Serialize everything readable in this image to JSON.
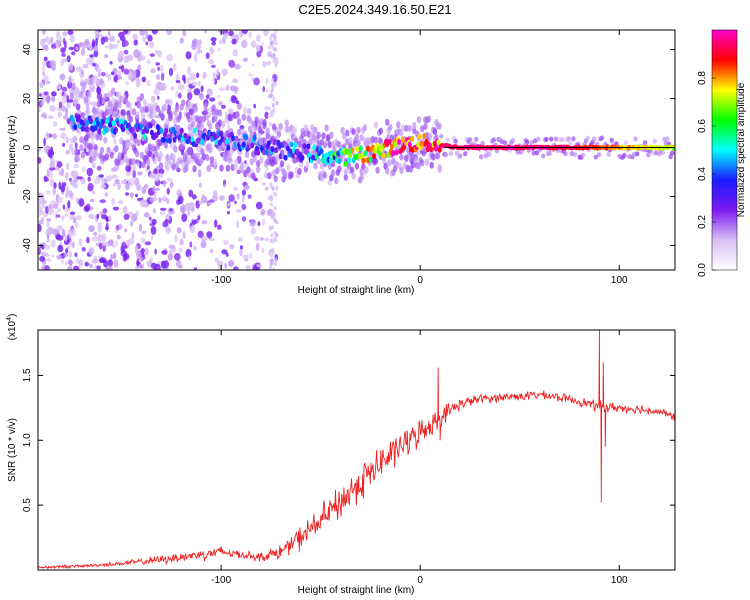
{
  "title": "C2E5.2024.349.16.50.E21",
  "chart_data": [
    {
      "type": "heatmap",
      "name": "spectrogram",
      "xlabel": "Height of straight line (km)",
      "ylabel": "Frequency (Hz)",
      "xlim": [
        -192,
        128
      ],
      "ylim": [
        -50,
        48
      ],
      "xticks": [
        -100,
        0,
        100
      ],
      "yticks": [
        -40,
        -20,
        0,
        20,
        40
      ],
      "colorbar": {
        "label": "Normalized spectral amplitude",
        "range": [
          0,
          1
        ],
        "ticks": [
          0.0,
          0.2,
          0.4,
          0.6,
          0.8
        ],
        "colors": [
          "#ffffff",
          "#d9bff5",
          "#7d1bf0",
          "#1a1aff",
          "#00ffff",
          "#00ff00",
          "#ffff00",
          "#ff0000",
          "#ff00cc"
        ]
      },
      "ridge": [
        {
          "x": -168,
          "y": 10,
          "amp": 0.35
        },
        {
          "x": -150,
          "y": 8,
          "amp": 0.4
        },
        {
          "x": -130,
          "y": 6,
          "amp": 0.35
        },
        {
          "x": -110,
          "y": 4,
          "amp": 0.35
        },
        {
          "x": -90,
          "y": 2,
          "amp": 0.3
        },
        {
          "x": -70,
          "y": -1,
          "amp": 0.3
        },
        {
          "x": -50,
          "y": -3,
          "amp": 0.4
        },
        {
          "x": -40,
          "y": -4,
          "amp": 0.55
        },
        {
          "x": -30,
          "y": -3,
          "amp": 0.7
        },
        {
          "x": -20,
          "y": -1,
          "amp": 0.8
        },
        {
          "x": -10,
          "y": 1,
          "amp": 0.85
        },
        {
          "x": 0,
          "y": 2,
          "amp": 0.85
        },
        {
          "x": 10,
          "y": 1,
          "amp": 0.9
        },
        {
          "x": 20,
          "y": 0,
          "amp": 0.95
        },
        {
          "x": 60,
          "y": 0,
          "amp": 0.95
        },
        {
          "x": 85,
          "y": 0,
          "amp": 0.9
        },
        {
          "x": 100,
          "y": 0,
          "amp": 0.8
        },
        {
          "x": 128,
          "y": 0,
          "amp": 0.7
        }
      ]
    },
    {
      "type": "line",
      "name": "snr",
      "xlabel": "Height of straight line (km)",
      "ylabel": "SNR (10 * v/v)",
      "yscale_label": "(x10",
      "yscale_exp": "4",
      "xlim": [
        -192,
        128
      ],
      "ylim": [
        0.0,
        1.85
      ],
      "xticks": [
        -100,
        0,
        100
      ],
      "yticks": [
        0.5,
        1.0,
        1.5
      ],
      "ytick_labels": [
        "0.5",
        "1.0",
        "1.5"
      ],
      "color": "#ee2222",
      "x": [
        -192,
        -170,
        -150,
        -130,
        -110,
        -100,
        -90,
        -80,
        -70,
        -60,
        -50,
        -40,
        -30,
        -20,
        -10,
        0,
        10,
        20,
        30,
        40,
        50,
        60,
        70,
        80,
        90,
        100,
        110,
        120,
        128
      ],
      "y": [
        0.02,
        0.03,
        0.05,
        0.08,
        0.12,
        0.14,
        0.12,
        0.1,
        0.14,
        0.25,
        0.38,
        0.52,
        0.68,
        0.82,
        0.95,
        1.06,
        1.18,
        1.28,
        1.32,
        1.33,
        1.34,
        1.35,
        1.33,
        1.3,
        1.26,
        1.25,
        1.24,
        1.22,
        1.18
      ],
      "noise": [
        0.01,
        0.01,
        0.015,
        0.03,
        0.04,
        0.04,
        0.03,
        0.03,
        0.05,
        0.08,
        0.1,
        0.12,
        0.13,
        0.12,
        0.1,
        0.09,
        0.07,
        0.04,
        0.03,
        0.03,
        0.03,
        0.03,
        0.03,
        0.03,
        0.04,
        0.03,
        0.03,
        0.03,
        0.03
      ],
      "spikes": [
        {
          "x": 9,
          "y": 1.56
        },
        {
          "x": 10,
          "y": 1.0
        },
        {
          "x": 90,
          "y": 1.85
        },
        {
          "x": 91,
          "y": 0.52
        },
        {
          "x": 92,
          "y": 1.6
        },
        {
          "x": 93,
          "y": 0.95
        }
      ]
    }
  ]
}
